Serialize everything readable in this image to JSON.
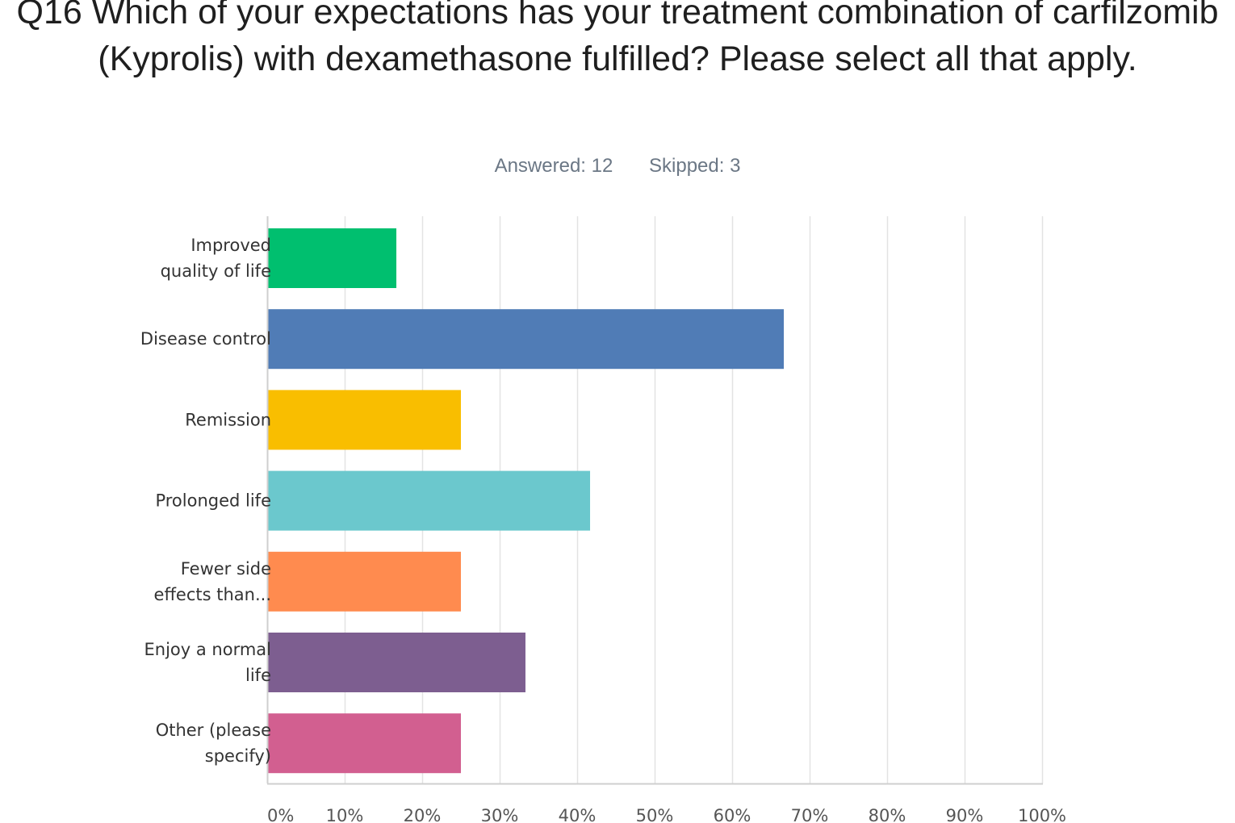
{
  "question": {
    "title": "Q16 Which of your expectations has your treatment combination of carfilzomib (Kyprolis) with dexamethasone fulfilled? Please select all that apply.",
    "answered": "Answered: 12",
    "skipped": "Skipped: 3"
  },
  "chart_data": {
    "type": "bar",
    "orientation": "horizontal",
    "title": "Q16 Which of your expectations has your treatment combination of carfilzomib (Kyprolis) with dexamethasone fulfilled? Please select all that apply.",
    "xlabel": "",
    "ylabel": "",
    "xlim": [
      0,
      100
    ],
    "grid": true,
    "categories": [
      [
        "Improved",
        "quality of life"
      ],
      [
        "Disease control"
      ],
      [
        "Remission"
      ],
      [
        "Prolonged life"
      ],
      [
        "Fewer side",
        "effects than..."
      ],
      [
        "Enjoy a normal",
        "life"
      ],
      [
        "Other (please",
        "specify)"
      ]
    ],
    "values": [
      16.67,
      66.67,
      25.0,
      41.67,
      25.0,
      33.33,
      25.0
    ],
    "colors": [
      "#00bf6f",
      "#507cb6",
      "#f9be00",
      "#6bc8cd",
      "#ff8b4f",
      "#7d5e90",
      "#d25f90"
    ],
    "ticks": [
      "0%",
      "10%",
      "20%",
      "30%",
      "40%",
      "50%",
      "60%",
      "70%",
      "80%",
      "90%",
      "100%"
    ]
  }
}
